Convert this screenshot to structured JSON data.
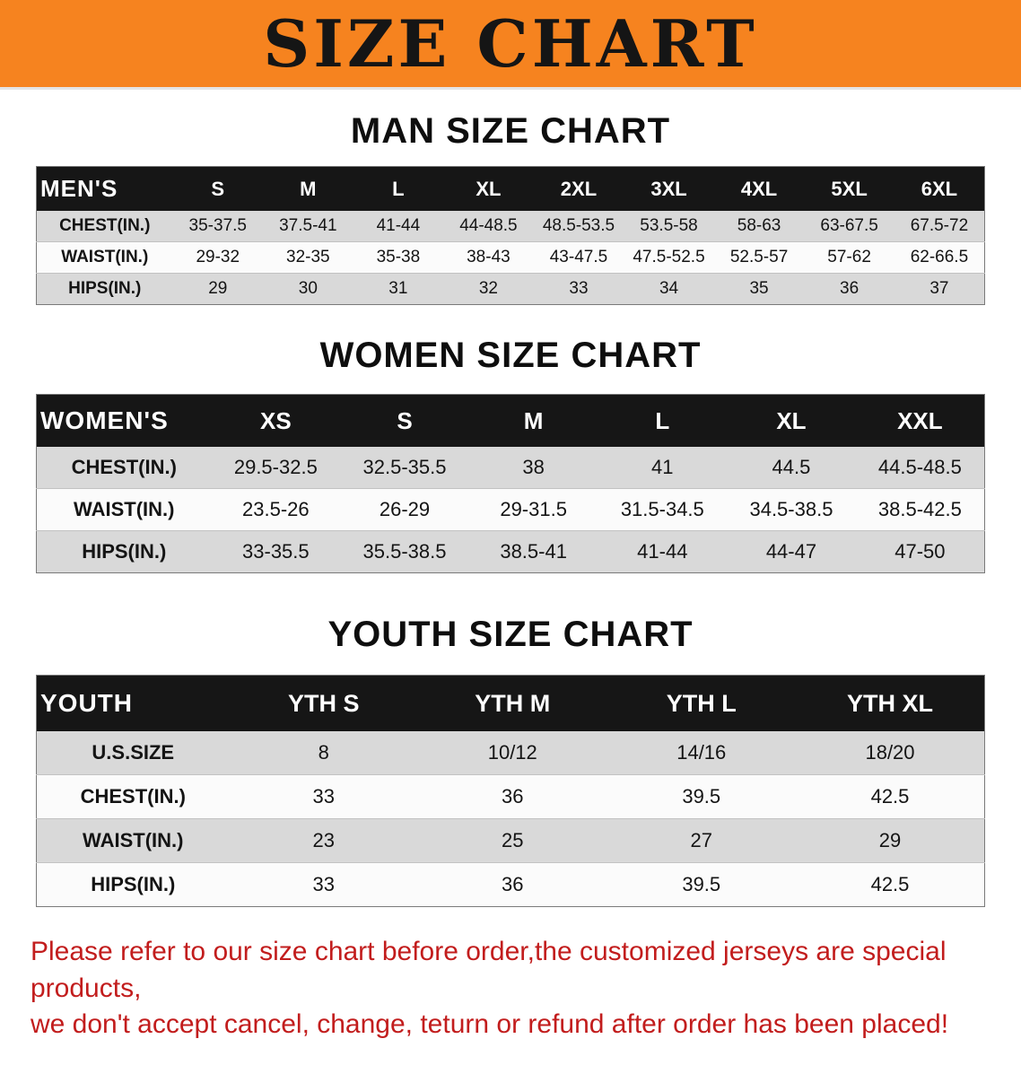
{
  "banner": {
    "title": "SIZE CHART"
  },
  "colors": {
    "banner_bg": "#f6831f",
    "header_bg": "#161616",
    "row_alt": "#d9d9d9",
    "footer_text": "#c21d1d"
  },
  "sections": [
    {
      "id": "men",
      "heading": "MAN SIZE CHART",
      "table": {
        "header": [
          "MEN'S",
          "S",
          "M",
          "L",
          "XL",
          "2XL",
          "3XL",
          "4XL",
          "5XL",
          "6XL"
        ],
        "rows": [
          [
            "CHEST(IN.)",
            "35-37.5",
            "37.5-41",
            "41-44",
            "44-48.5",
            "48.5-53.5",
            "53.5-58",
            "58-63",
            "63-67.5",
            "67.5-72"
          ],
          [
            "WAIST(IN.)",
            "29-32",
            "32-35",
            "35-38",
            "38-43",
            "43-47.5",
            "47.5-52.5",
            "52.5-57",
            "57-62",
            "62-66.5"
          ],
          [
            "HIPS(IN.)",
            "29",
            "30",
            "31",
            "32",
            "33",
            "34",
            "35",
            "36",
            "37"
          ]
        ]
      }
    },
    {
      "id": "women",
      "heading": "WOMEN SIZE CHART",
      "table": {
        "header": [
          "WOMEN'S",
          "XS",
          "S",
          "M",
          "L",
          "XL",
          "XXL"
        ],
        "rows": [
          [
            "CHEST(IN.)",
            "29.5-32.5",
            "32.5-35.5",
            "38",
            "41",
            "44.5",
            "44.5-48.5"
          ],
          [
            "WAIST(IN.)",
            "23.5-26",
            "26-29",
            "29-31.5",
            "31.5-34.5",
            "34.5-38.5",
            "38.5-42.5"
          ],
          [
            "HIPS(IN.)",
            "33-35.5",
            "35.5-38.5",
            "38.5-41",
            "41-44",
            "44-47",
            "47-50"
          ]
        ]
      }
    },
    {
      "id": "youth",
      "heading": "YOUTH SIZE CHART",
      "table": {
        "header": [
          "YOUTH",
          "YTH S",
          "YTH M",
          "YTH L",
          "YTH XL"
        ],
        "rows": [
          [
            "U.S.SIZE",
            "8",
            "10/12",
            "14/16",
            "18/20"
          ],
          [
            "CHEST(IN.)",
            "33",
            "36",
            "39.5",
            "42.5"
          ],
          [
            "WAIST(IN.)",
            "23",
            "25",
            "27",
            "29"
          ],
          [
            "HIPS(IN.)",
            "33",
            "36",
            "39.5",
            "42.5"
          ]
        ]
      }
    }
  ],
  "footer": {
    "line1": "Please refer to our size chart before order,the customized jerseys are special products,",
    "line2": "we don't accept cancel, change, teturn or refund after order has been placed!"
  }
}
